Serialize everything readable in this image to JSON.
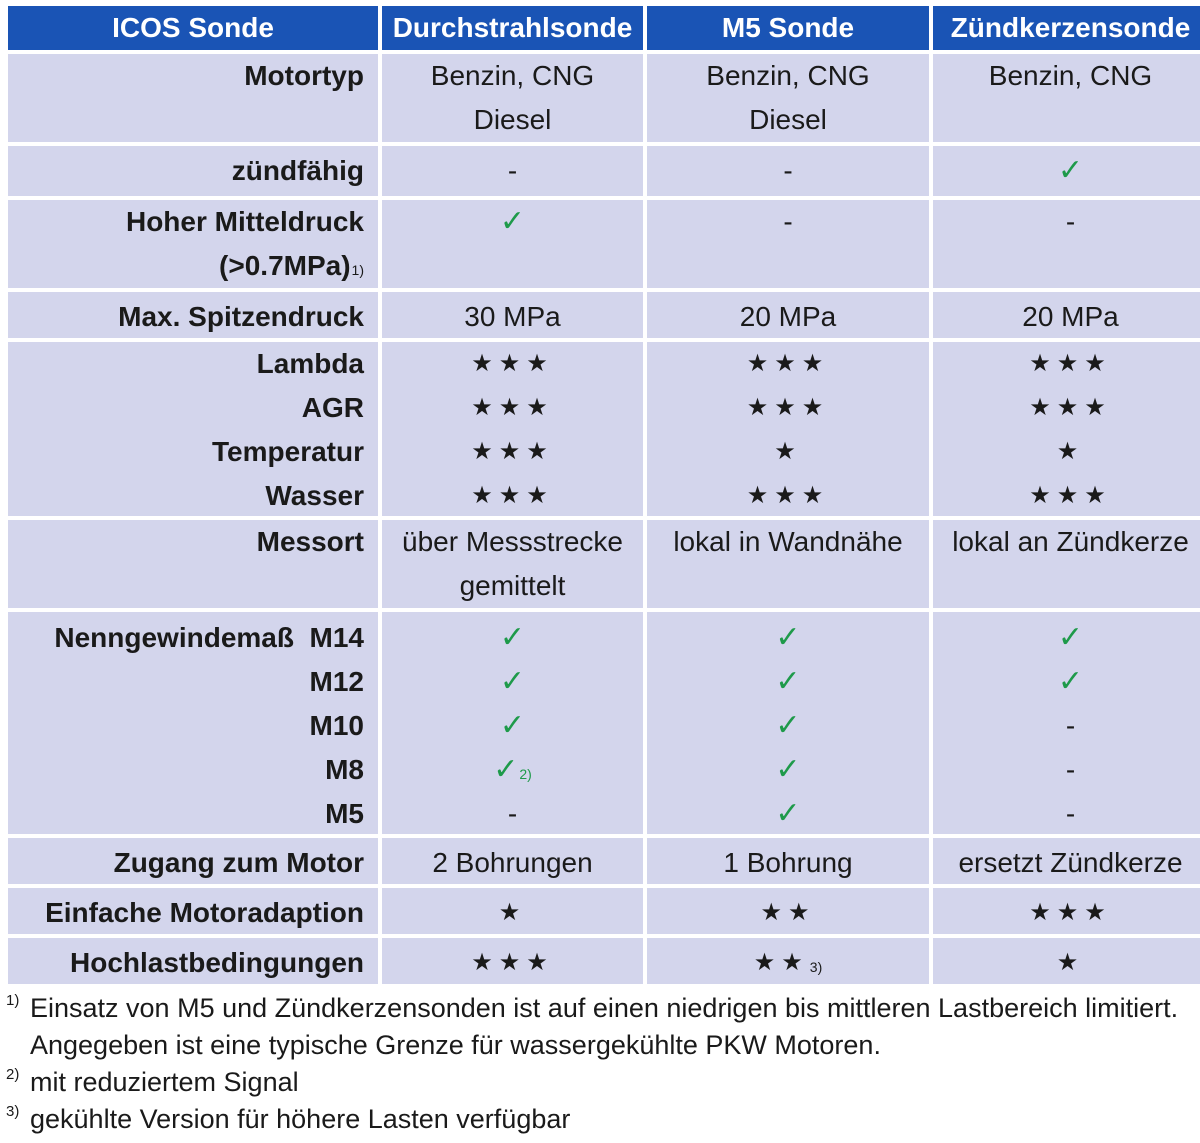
{
  "header": [
    "ICOS Sonde",
    "Durchstrahlsonde",
    "M5 Sonde",
    "Zündkerzensonde"
  ],
  "rows": [
    {
      "label": [
        "Motortyp"
      ],
      "cols": [
        [
          "Benzin, CNG",
          "Diesel"
        ],
        [
          "Benzin, CNG",
          "Diesel"
        ],
        [
          "Benzin, CNG"
        ]
      ]
    },
    {
      "label": [
        "zündfähig"
      ],
      "cols": [
        [
          "-"
        ],
        [
          "-"
        ],
        [
          "✓"
        ]
      ]
    },
    {
      "label": [
        "Hoher Mitteldruck",
        "(>0.7MPa)"
      ],
      "label_sup": "1)",
      "cols": [
        [
          "✓"
        ],
        [
          "-"
        ],
        [
          "-"
        ]
      ]
    },
    {
      "label": [
        "Max. Spitzendruck"
      ],
      "cols": [
        [
          "30 MPa"
        ],
        [
          "20 MPa"
        ],
        [
          "20 MPa"
        ]
      ]
    },
    {
      "label": [
        "Lambda",
        "AGR",
        "Temperatur",
        "Wasser"
      ],
      "cols": [
        [
          "★★★",
          "★★★",
          "★★★",
          "★★★"
        ],
        [
          "★★★",
          "★★★",
          "★",
          "★★★"
        ],
        [
          "★★★",
          "★★★",
          "★",
          "★★★"
        ]
      ]
    },
    {
      "label": [
        "Messort"
      ],
      "cols": [
        [
          "über Messstrecke",
          "gemittelt"
        ],
        [
          "lokal in Wandnähe"
        ],
        [
          "lokal an Zündkerze"
        ]
      ]
    },
    {
      "label": [
        "Nenngewindemaß  M14",
        "M12",
        "M10",
        "M8",
        "M5"
      ],
      "cols": [
        [
          "✓",
          "✓",
          "✓",
          "✓",
          "-"
        ],
        [
          "✓",
          "✓",
          "✓",
          "✓",
          "✓"
        ],
        [
          "✓",
          "✓",
          "-",
          "-",
          "-"
        ]
      ],
      "sup_m8_col1": "2)"
    },
    {
      "label": [
        "Zugang zum Motor"
      ],
      "cols": [
        [
          "2 Bohrungen"
        ],
        [
          "1 Bohrung"
        ],
        [
          "ersetzt Zündkerze"
        ]
      ]
    },
    {
      "label": [
        "Einfache Motoradaption"
      ],
      "cols": [
        [
          "★"
        ],
        [
          "★★"
        ],
        [
          "★★★"
        ]
      ]
    },
    {
      "label": [
        "Hochlastbedingungen"
      ],
      "cols": [
        [
          "★★★"
        ],
        [
          "★★"
        ],
        [
          "★"
        ]
      ],
      "sup_col2": "3)"
    }
  ],
  "footnotes": [
    {
      "mark": "1)",
      "lines": [
        "Einsatz von M5 und Zündkerzensonden ist auf einen niedrigen bis mittleren Lastbereich limitiert.",
        "Angegeben ist eine typische Grenze für wassergekühlte PKW Motoren."
      ]
    },
    {
      "mark": "2)",
      "lines": [
        "mit reduziertem Signal"
      ]
    },
    {
      "mark": "3)",
      "lines": [
        "gekühlte Version für höhere Lasten verfügbar"
      ]
    }
  ],
  "colors": {
    "header_bg": "#1a54b5",
    "cell_bg": "#d3d5ec",
    "check": "#1e9a4a"
  }
}
